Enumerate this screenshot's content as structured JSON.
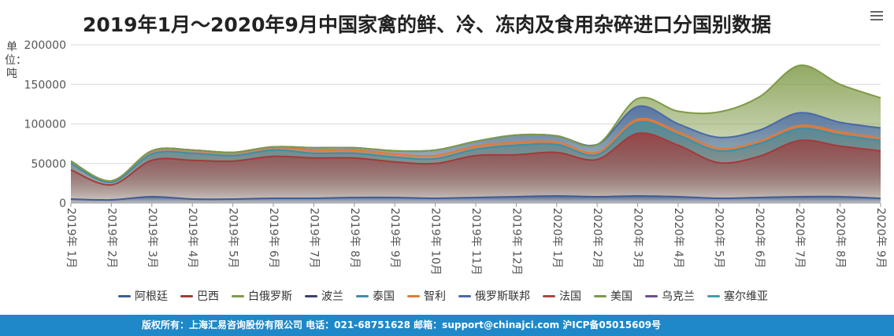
{
  "chart_data": {
    "type": "area",
    "stacked": true,
    "title": "2019年1月～2020年9月中国家禽的鲜、冷、冻肉及食用杂碎进口分国别数据",
    "ylabel": "单位：吨",
    "ylim": [
      0,
      200000
    ],
    "y_ticks": [
      "0",
      "50000",
      "100000",
      "150000",
      "200000"
    ],
    "grid": true,
    "legend_position": "bottom",
    "categories": [
      "2019年 1月",
      "2019年 2月",
      "2019年 3月",
      "2019年 4月",
      "2019年 5月",
      "2019年 6月",
      "2019年 7月",
      "2019年 8月",
      "2019年 9月",
      "2019年 10月",
      "2019年 11月",
      "2019年 12月",
      "2020年 1月",
      "2020年 2月",
      "2020年 3月",
      "2020年 4月",
      "2020年 5月",
      "2020年 6月",
      "2020年 7月",
      "2020年 8月",
      "2020年 9月"
    ],
    "series": [
      {
        "name": "阿根廷",
        "color": "#3f5d94",
        "values": [
          5000,
          4000,
          8000,
          5000,
          5000,
          6000,
          6000,
          7000,
          7000,
          6000,
          7000,
          8000,
          9000,
          8000,
          9000,
          8000,
          6000,
          7000,
          8000,
          8000,
          6000
        ]
      },
      {
        "name": "巴西",
        "color": "#a33a3a",
        "values": [
          37000,
          19000,
          46000,
          49000,
          48000,
          53000,
          51000,
          50000,
          45000,
          44000,
          53000,
          53000,
          55000,
          47000,
          79000,
          65000,
          45000,
          52000,
          71000,
          64000,
          60000
        ]
      },
      {
        "name": "白俄罗斯",
        "color": "#7f9a48",
        "values": [
          0,
          0,
          0,
          0,
          0,
          0,
          0,
          0,
          0,
          0,
          0,
          0,
          0,
          0,
          0,
          0,
          0,
          0,
          0,
          0,
          0
        ]
      },
      {
        "name": "波兰",
        "color": "#3b3f73",
        "values": [
          0,
          0,
          0,
          0,
          0,
          0,
          0,
          0,
          0,
          0,
          0,
          0,
          0,
          0,
          0,
          0,
          0,
          0,
          0,
          0,
          0
        ]
      },
      {
        "name": "泰国",
        "color": "#3e8ea8",
        "values": [
          8000,
          3000,
          8000,
          9000,
          7000,
          8000,
          6000,
          6000,
          6000,
          6000,
          8000,
          12000,
          10000,
          6000,
          14000,
          13000,
          15000,
          16000,
          15000,
          14000,
          13000
        ]
      },
      {
        "name": "智利",
        "color": "#e07b39",
        "values": [
          3000,
          2000,
          4000,
          4000,
          4000,
          4000,
          4000,
          4000,
          4000,
          4000,
          4000,
          4000,
          3000,
          3000,
          4000,
          4000,
          3000,
          3000,
          4000,
          4000,
          3000
        ]
      },
      {
        "name": "俄罗斯联邦",
        "color": "#4a69a8",
        "values": [
          0,
          0,
          0,
          0,
          0,
          0,
          3000,
          3000,
          4000,
          7000,
          6000,
          9000,
          8000,
          10000,
          16000,
          10000,
          14000,
          14000,
          16000,
          12000,
          13000
        ]
      },
      {
        "name": "法国",
        "color": "#a84848",
        "values": [
          0,
          0,
          0,
          0,
          0,
          0,
          0,
          0,
          0,
          0,
          0,
          0,
          0,
          0,
          0,
          0,
          0,
          0,
          0,
          0,
          0
        ]
      },
      {
        "name": "美国",
        "color": "#7f9a48",
        "values": [
          0,
          0,
          0,
          0,
          0,
          0,
          0,
          0,
          0,
          0,
          0,
          0,
          0,
          0,
          10000,
          16000,
          32000,
          42000,
          60000,
          48000,
          38000
        ]
      },
      {
        "name": "乌克兰",
        "color": "#6a4f8c",
        "values": [
          0,
          0,
          0,
          0,
          0,
          0,
          0,
          0,
          0,
          0,
          0,
          0,
          0,
          0,
          0,
          0,
          0,
          0,
          0,
          0,
          0
        ]
      },
      {
        "name": "塞尔维亚",
        "color": "#3fa0a8",
        "values": [
          0,
          0,
          0,
          0,
          0,
          0,
          0,
          0,
          0,
          0,
          0,
          0,
          0,
          0,
          0,
          0,
          0,
          0,
          0,
          0,
          0
        ]
      }
    ]
  },
  "footer": {
    "text": "版权所有：上海汇易咨询股份有限公司  电话：021-68751628  邮箱：support@chinajci.com  沪ICP备05015609号"
  }
}
